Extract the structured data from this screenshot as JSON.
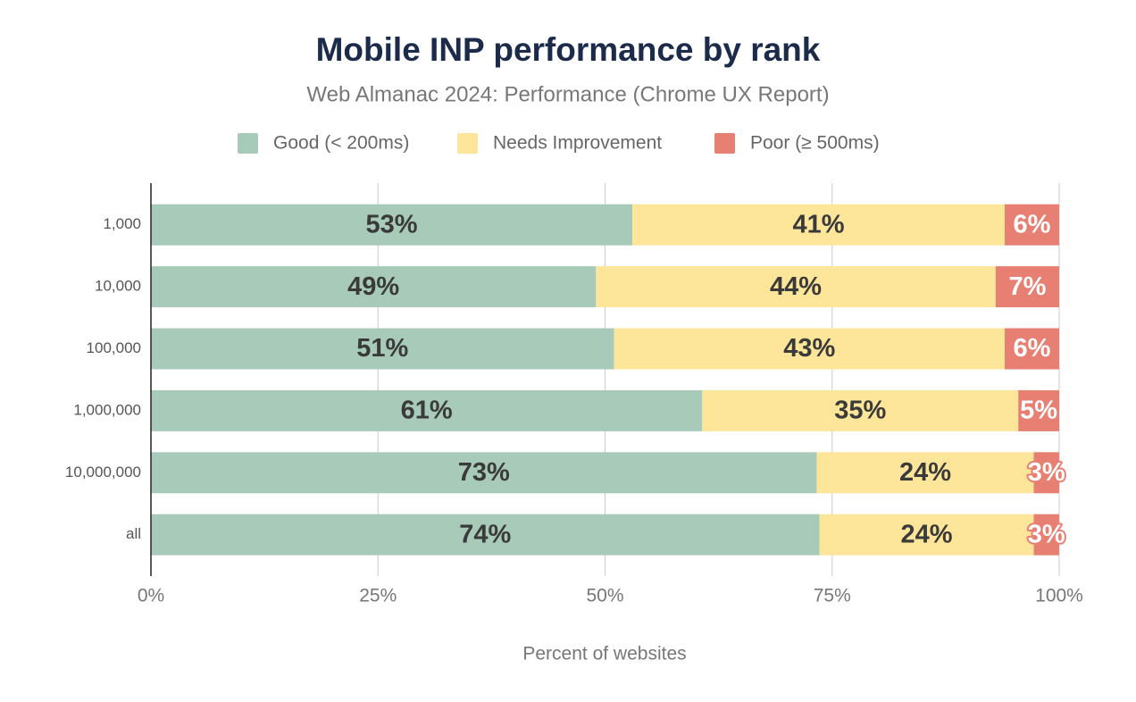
{
  "chart_data": {
    "type": "stacked-barh",
    "title": "Mobile INP performance by rank",
    "subtitle": "Web Almanac 2024: Performance (Chrome UX Report)",
    "xlabel": "Percent of websites",
    "categories": [
      "1,000",
      "10,000",
      "100,000",
      "1,000,000",
      "10,000,000",
      "all"
    ],
    "series": [
      {
        "name": "Good (< 200ms)",
        "color": "#a8cbb9",
        "label_style": "dark",
        "values": [
          53,
          49,
          51,
          60.7,
          73.3,
          73.6
        ],
        "value_labels": [
          "53%",
          "49%",
          "51%",
          "61%",
          "73%",
          "74%"
        ]
      },
      {
        "name": "Needs Improvement",
        "color": "#fde599",
        "label_style": "dark",
        "values": [
          41,
          44,
          43,
          34.8,
          23.9,
          23.6
        ],
        "value_labels": [
          "41%",
          "44%",
          "43%",
          "35%",
          "24%",
          "24%"
        ]
      },
      {
        "name": "Poor (≥ 500ms)",
        "color": "#e77f72",
        "label_style": "light",
        "values": [
          6,
          7,
          6,
          4.5,
          2.8,
          2.8
        ],
        "value_labels": [
          "6%",
          "7%",
          "6%",
          "5%",
          "3%",
          "3%"
        ]
      }
    ],
    "xlim": [
      0,
      100
    ],
    "xticks": [
      {
        "value": 0,
        "label": "0%"
      },
      {
        "value": 25,
        "label": "25%"
      },
      {
        "value": 50,
        "label": "50%"
      },
      {
        "value": 75,
        "label": "75%"
      },
      {
        "value": 100,
        "label": "100%"
      }
    ],
    "grid": true,
    "legend": "top"
  }
}
